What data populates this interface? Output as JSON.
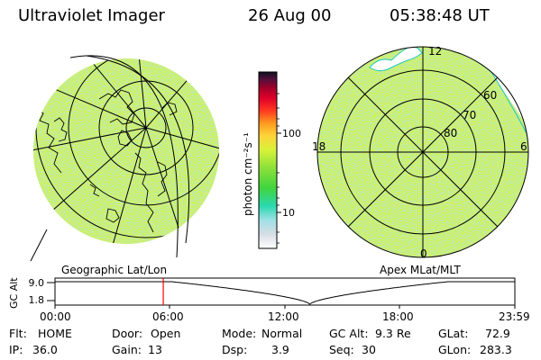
{
  "header": {
    "title": "Ultraviolet Imager",
    "date": "26 Aug 00",
    "time": "05:38:48 UT"
  },
  "colors": {
    "map_fill": "#d9f23a",
    "map_noise": "#7fd18a",
    "line": "#000000",
    "time_marker": "#ff0000"
  },
  "colorbar": {
    "label": "photon cm⁻²s⁻¹",
    "ticks": [
      "100",
      "10"
    ]
  },
  "left_panel": {
    "label": "Geographic Lat/Lon"
  },
  "right_panel": {
    "label": "Apex MLat/MLT",
    "mlt_labels": {
      "top": "12",
      "left": "18",
      "right": "6",
      "bottom": "0"
    },
    "lat_labels": [
      "60",
      "70",
      "80"
    ]
  },
  "timeline": {
    "ylabel": "GC Alt",
    "y_ticks": [
      "9.0",
      "1.8"
    ],
    "x_ticks": [
      "00:00",
      "06:00",
      "12:00",
      "18:00",
      "23:59"
    ],
    "current_time_hours": 5.65
  },
  "info": {
    "row1": [
      {
        "label": "Flt:",
        "value": "HOME"
      },
      {
        "label": "Door:",
        "value": "Open"
      },
      {
        "label": "Mode:",
        "value": "Normal"
      },
      {
        "label": "GC Alt:",
        "value": "9.3 Re"
      },
      {
        "label": "GLat:",
        "value": "72.9"
      }
    ],
    "row2": [
      {
        "label": "IP:",
        "value": "36.0"
      },
      {
        "label": "Gain:",
        "value": "13"
      },
      {
        "label": "Dsp:",
        "value": "3.9"
      },
      {
        "label": "Seq:",
        "value": "30"
      },
      {
        "label": "GLon:",
        "value": "283.3"
      }
    ]
  }
}
